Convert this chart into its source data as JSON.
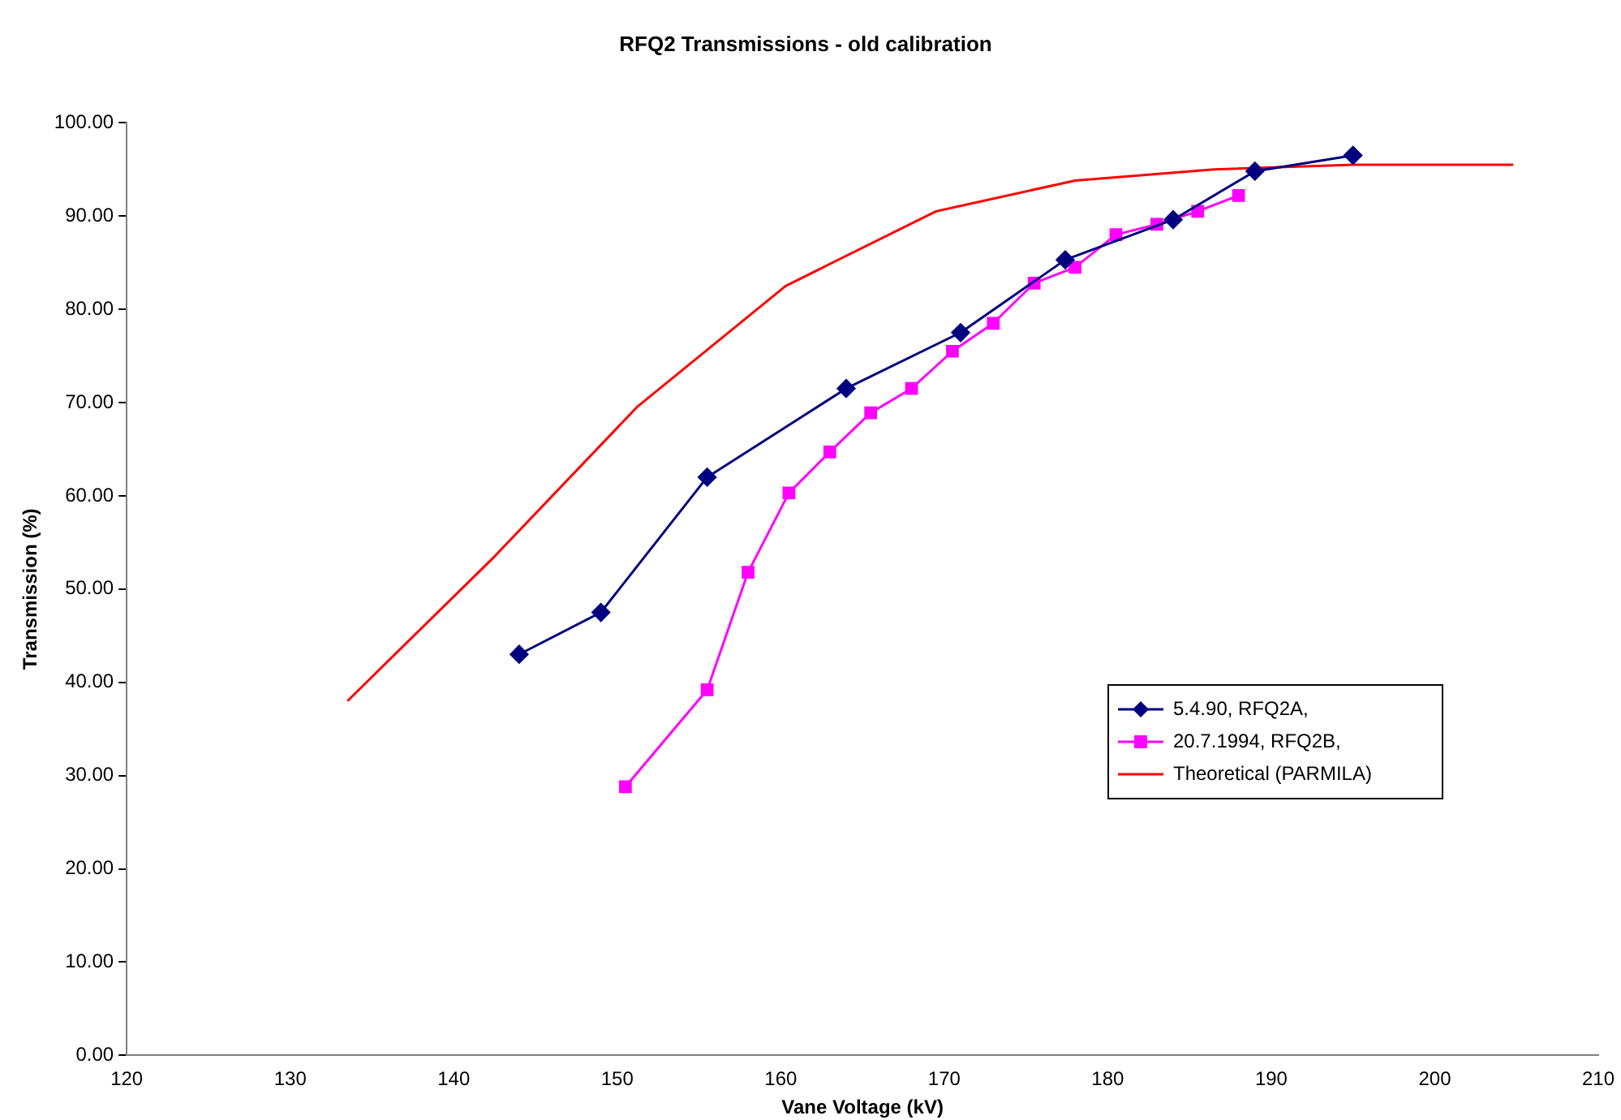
{
  "chart_data": {
    "type": "line",
    "title": "RFQ2 Transmissions - old calibration",
    "xlabel": "Vane Voltage (kV)",
    "ylabel": "Transmission (%)",
    "xlim": [
      120,
      210
    ],
    "xticks": [
      120,
      130,
      140,
      150,
      160,
      170,
      180,
      190,
      200,
      210
    ],
    "ylim": [
      0,
      100
    ],
    "yticks": [
      {
        "value": 0,
        "label": "0.00"
      },
      {
        "value": 10,
        "label": "10.00"
      },
      {
        "value": 20,
        "label": "20.00"
      },
      {
        "value": 30,
        "label": "30.00"
      },
      {
        "value": 40,
        "label": "40.00"
      },
      {
        "value": 50,
        "label": "50.00"
      },
      {
        "value": 60,
        "label": "60.00"
      },
      {
        "value": 70,
        "label": "70.00"
      },
      {
        "value": 80,
        "label": "80.00"
      },
      {
        "value": 90,
        "label": "90.00"
      },
      {
        "value": 100,
        "label": "100.00"
      }
    ],
    "grid": false,
    "legend": "right",
    "series": [
      {
        "name": "5.4.90, RFQ2A,",
        "color": "#000080",
        "marker": "diamond",
        "x": [
          144,
          149,
          155.5,
          164,
          171,
          177.4,
          184,
          189,
          195
        ],
        "values": [
          43,
          47.5,
          62,
          71.5,
          77.5,
          85.3,
          89.6,
          94.8,
          96.5
        ]
      },
      {
        "name": "20.7.1994, RFQ2B,",
        "color": "#ff00ff",
        "marker": "square",
        "x": [
          150.5,
          155.5,
          158,
          160.5,
          163,
          165.5,
          168,
          170.5,
          173,
          175.5,
          178,
          180.5,
          183,
          185.5,
          188
        ],
        "values": [
          28.8,
          39.2,
          51.8,
          60.3,
          64.7,
          68.9,
          71.5,
          75.5,
          78.5,
          82.8,
          84.5,
          88,
          89.1,
          90.5,
          92.2
        ]
      },
      {
        "name": "Theoretical (PARMILA)",
        "color": "#ff0000",
        "marker": "none",
        "x": [
          133.5,
          142.5,
          151.2,
          160.3,
          169.5,
          178,
          186.5,
          195,
          204.8
        ],
        "values": [
          38,
          53.5,
          69.5,
          82.5,
          90.5,
          93.8,
          95,
          95.5,
          95.5
        ]
      }
    ]
  }
}
